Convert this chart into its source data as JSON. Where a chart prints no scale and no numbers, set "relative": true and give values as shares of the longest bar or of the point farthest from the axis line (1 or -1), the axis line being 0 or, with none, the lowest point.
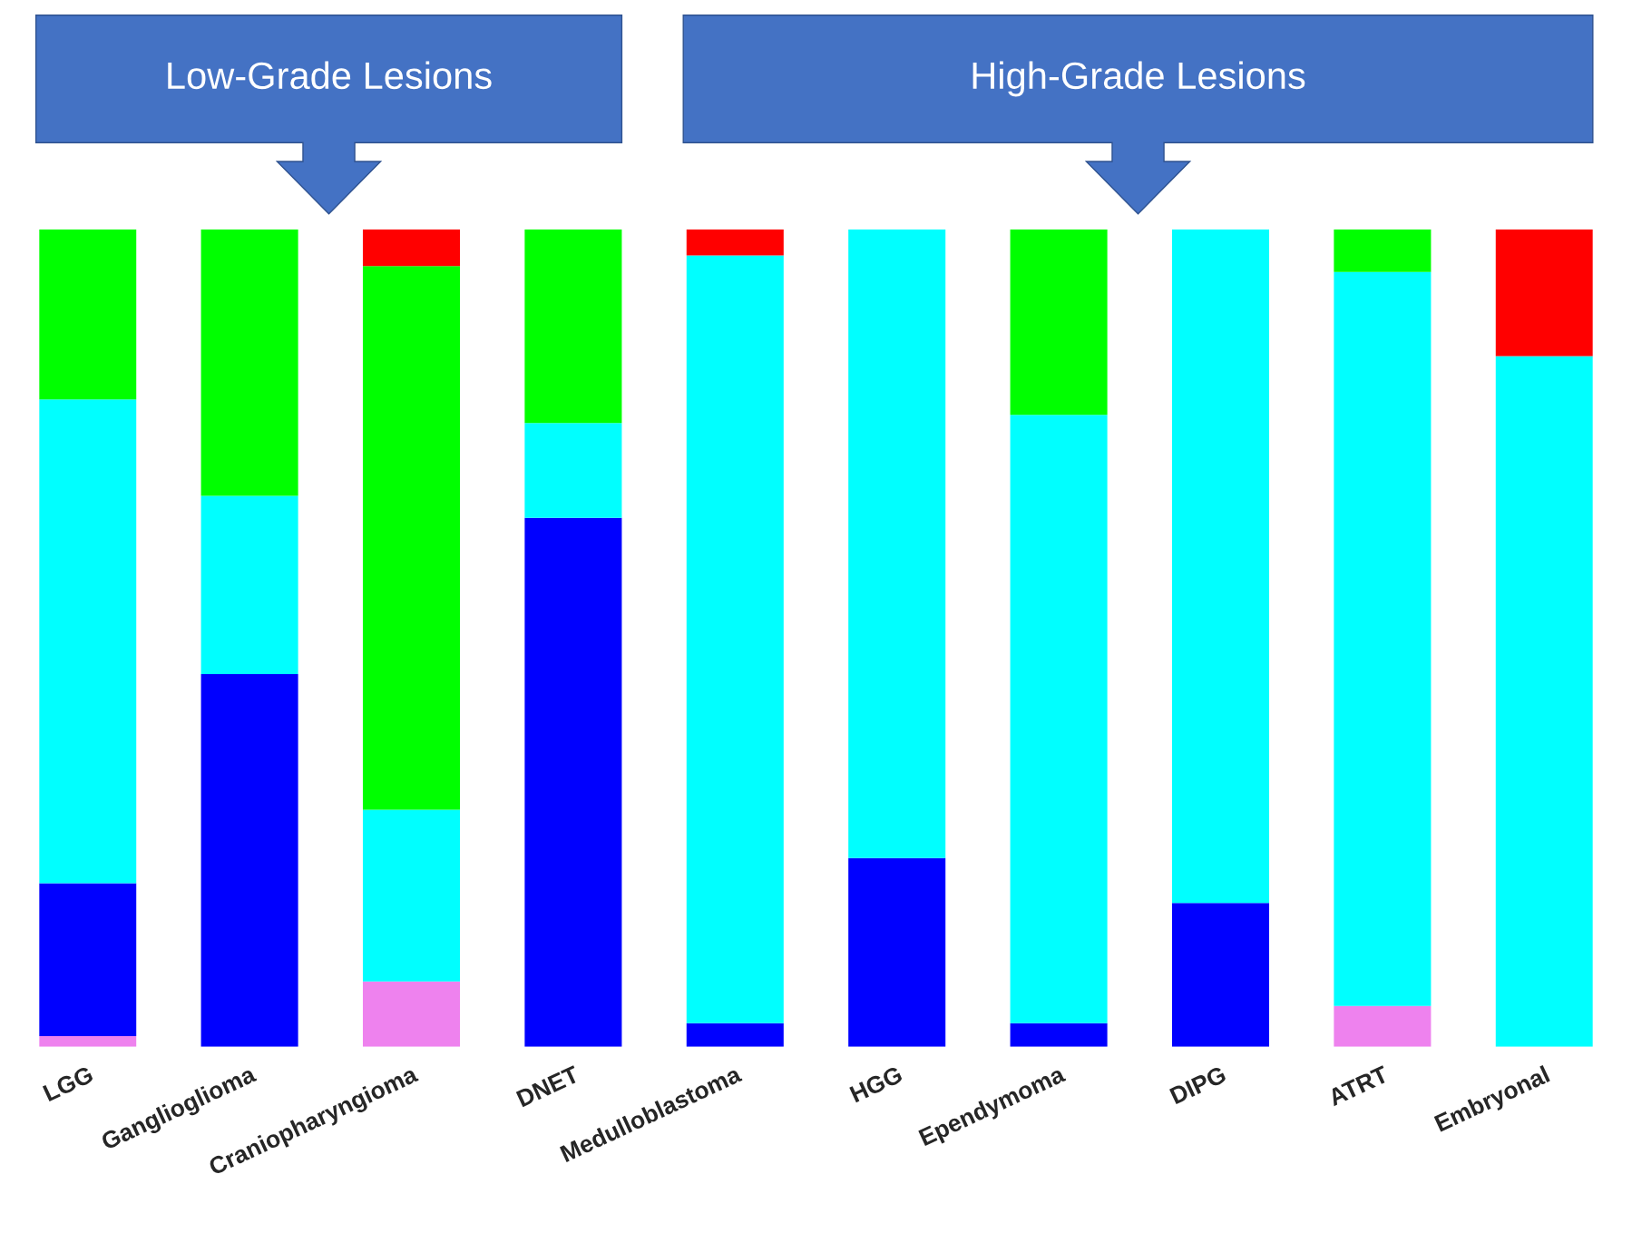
{
  "chart_data": {
    "type": "bar",
    "stacked": true,
    "relative": true,
    "grid": false,
    "legend": false,
    "categories": [
      "LGG",
      "Ganglioglioma",
      "Craniopharyngioma",
      "DNET",
      "Medulloblastoma",
      "HGG",
      "Ependymoma",
      "DIPG",
      "ATRT",
      "Embryonal"
    ],
    "series": [
      {
        "color": "#ee82ee",
        "values": [
          0.013,
          null,
          0.08,
          null,
          null,
          null,
          null,
          null,
          0.05,
          null
        ]
      },
      {
        "color": "#0000ff",
        "values": [
          0.187,
          0.456,
          null,
          0.647,
          0.029,
          0.231,
          0.029,
          0.176,
          null,
          null
        ]
      },
      {
        "color": "#00ffff",
        "values": [
          0.592,
          0.218,
          0.21,
          0.116,
          0.939,
          0.769,
          0.744,
          0.824,
          0.898,
          0.845
        ]
      },
      {
        "color": "#00ff00",
        "values": [
          0.208,
          0.326,
          0.665,
          0.237,
          null,
          null,
          0.227,
          null,
          0.052,
          null
        ]
      },
      {
        "color": "#ff0000",
        "values": [
          null,
          null,
          0.045,
          null,
          0.032,
          null,
          null,
          null,
          null,
          0.155
        ]
      }
    ],
    "annotations": [
      "Low-Grade Lesions",
      "High-Grade Lesions"
    ]
  }
}
